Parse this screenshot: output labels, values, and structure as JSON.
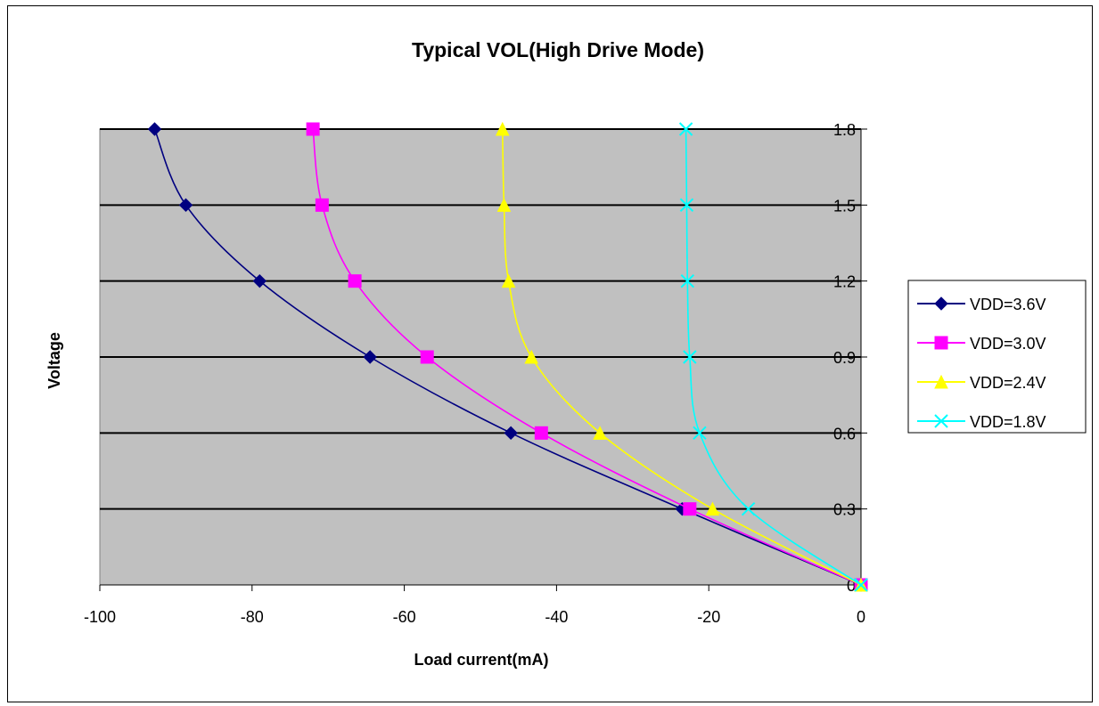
{
  "chart_data": {
    "type": "line",
    "title": "Typical VOL(High Drive Mode)",
    "xlabel": "Load current(mA)",
    "ylabel": "Voltage",
    "xlim": [
      -100,
      0
    ],
    "ylim": [
      0,
      1.8
    ],
    "x_ticks": [
      "-100",
      "-80",
      "-60",
      "-40",
      "-20",
      "0"
    ],
    "y_ticks": [
      "0",
      "0.3",
      "0.6",
      "0.9",
      "1.2",
      "1.5",
      "1.8"
    ],
    "grid": "horizontal",
    "legend_position": "right",
    "plot_background": "#c0c0c0",
    "series": [
      {
        "name": "VDD=3.6V",
        "color": "#000080",
        "marker": "diamond",
        "points": [
          [
            0,
            0
          ],
          [
            -23.5,
            0.3
          ],
          [
            -46,
            0.6
          ],
          [
            -64.5,
            0.9
          ],
          [
            -79,
            1.2
          ],
          [
            -88.7,
            1.5
          ],
          [
            -92.8,
            1.8
          ]
        ]
      },
      {
        "name": "VDD=3.0V",
        "color": "#ff00ff",
        "marker": "square",
        "points": [
          [
            0,
            0
          ],
          [
            -22.5,
            0.3
          ],
          [
            -42,
            0.6
          ],
          [
            -57,
            0.9
          ],
          [
            -66.5,
            1.2
          ],
          [
            -70.8,
            1.5
          ],
          [
            -72,
            1.8
          ]
        ]
      },
      {
        "name": "VDD=2.4V",
        "color": "#ffff00",
        "marker": "triangle",
        "points": [
          [
            0,
            0
          ],
          [
            -19.5,
            0.3
          ],
          [
            -34.3,
            0.6
          ],
          [
            -43.3,
            0.9
          ],
          [
            -46.3,
            1.2
          ],
          [
            -46.9,
            1.5
          ],
          [
            -47.1,
            1.8
          ]
        ]
      },
      {
        "name": "VDD=1.8V",
        "color": "#00ffff",
        "marker": "x",
        "points": [
          [
            0,
            0
          ],
          [
            -14.8,
            0.3
          ],
          [
            -21.2,
            0.6
          ],
          [
            -22.5,
            0.9
          ],
          [
            -22.8,
            1.2
          ],
          [
            -22.9,
            1.5
          ],
          [
            -23,
            1.8
          ]
        ]
      }
    ]
  }
}
